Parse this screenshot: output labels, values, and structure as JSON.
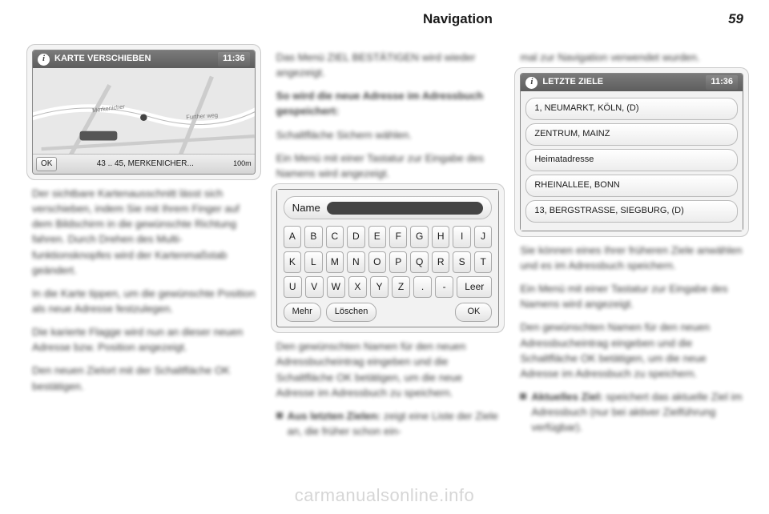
{
  "header": {
    "section": "Navigation",
    "page": "59"
  },
  "col1": {
    "device": {
      "title": "KARTE VERSCHIEBEN",
      "clock": "11:36",
      "ok": "OK",
      "addr": "43 .. 45, MERKENICHER...",
      "scale": "100m",
      "map_label1": "Merkenicher",
      "map_label2": "Further weg"
    },
    "p1": "Der sichtbare Kartenausschnitt lässt sich verschieben, indem Sie mit Ihrem Finger auf dem Bild­schirm in die gewünschte Richtung fahren. Durch Drehen des Multi­funktionsknopfes wird der Karten­maßstab geändert.",
    "p2": "In die Karte tippen, um die ge­wünschte Position als neue Adresse festzulegen.",
    "p3": "Die karierte Flagge wird nun an die­ser neuen Adresse bzw. Position angezeigt.",
    "p4": "Den neuen Zielort mit der Schalt­fläche OK bestätigen."
  },
  "col2": {
    "p1": "Das Menü ZIEL BESTÄTIGEN wird wieder angezeigt.",
    "p2": "So wird die neue Adresse im Adressbuch gespeichert:",
    "p3": "Schaltfläche Sichern wählen.",
    "p4": "Ein Menü mit einer Tastatur zur Eingabe des Namens wird ange­zeigt.",
    "kb": {
      "name_label": "Name",
      "rows": [
        [
          "A",
          "B",
          "C",
          "D",
          "E",
          "F",
          "G",
          "H",
          "I",
          "J"
        ],
        [
          "K",
          "L",
          "M",
          "N",
          "O",
          "P",
          "Q",
          "R",
          "S",
          "T"
        ],
        [
          "U",
          "V",
          "W",
          "X",
          "Y",
          "Z",
          ".",
          "-",
          "Leer"
        ]
      ],
      "foot": {
        "more": "Mehr",
        "del": "Löschen",
        "ok": "OK"
      }
    },
    "p5": "Den gewünschten Namen für den neuen Adressbucheintrag einge­ben und die Schaltfläche OK betä­tigen, um die neue Adresse im Adressbuch zu speichern.",
    "bullet_lead": "Aus letzten Zielen:",
    "bullet_rest": " zeigt eine Liste der Ziele an, die früher schon ein-"
  },
  "col3": {
    "p0": "mal zur Navigation verwendet wur­den.",
    "device": {
      "title": "LETZTE ZIELE",
      "clock": "11:36",
      "items": [
        "1, NEUMARKT, KÖLN, (D)",
        "ZENTRUM, MAINZ",
        "Heimatadresse",
        "RHEINALLEE, BONN",
        "13, BERGSTRASSE, SIEGBURG, (D)"
      ]
    },
    "p1": "Sie können eines Ihrer früheren Ziele anwählen und es im Adress­buch speichern.",
    "p2": "Ein Menü mit einer Tastatur zur Eingabe des Namens wird ange­zeigt.",
    "p3": "Den gewünschten Namen für den neuen Adressbucheintrag einge­ben und die Schaltfläche OK betä­tigen, um die neue Adresse im Adressbuch zu speichern.",
    "bullet_lead": "Aktuelles Ziel:",
    "bullet_rest": " speichert das aktu­elle Ziel im Adressbuch (nur bei ak­tiver Zielführung verfügbar)."
  },
  "watermark": "carmanualsonline.info"
}
